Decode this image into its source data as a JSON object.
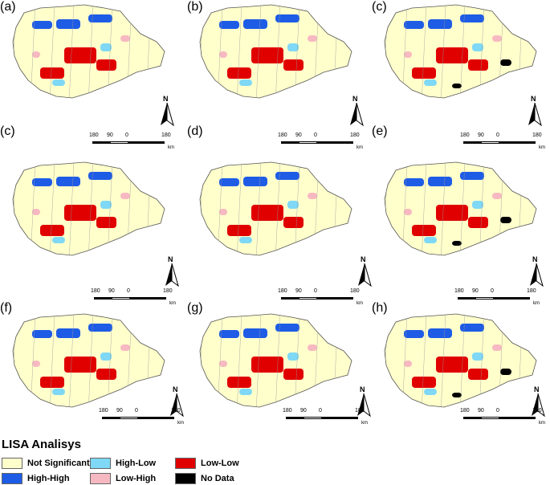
{
  "panels": [
    {
      "label": "(a)",
      "classes": [
        "high-high",
        "low-low",
        "high-low",
        "low-high"
      ]
    },
    {
      "label": "(b)",
      "classes": [
        "high-high",
        "low-low",
        "high-low",
        "low-high"
      ]
    },
    {
      "label": "(c)",
      "classes": [
        "high-high",
        "low-low",
        "high-low",
        "low-high",
        "no-data"
      ]
    },
    {
      "label": "(c)",
      "classes": [
        "high-high",
        "low-low",
        "high-low",
        "low-high"
      ]
    },
    {
      "label": "(d)",
      "classes": [
        "high-high",
        "low-low",
        "high-low",
        "low-high"
      ]
    },
    {
      "label": "(e)",
      "classes": [
        "high-high",
        "low-low",
        "high-low",
        "low-high",
        "no-data"
      ]
    },
    {
      "label": "(f)",
      "classes": [
        "high-high",
        "low-low",
        "high-low",
        "low-high"
      ]
    },
    {
      "label": "(g)",
      "classes": [
        "high-high",
        "low-low",
        "high-low",
        "low-high"
      ]
    },
    {
      "label": "(h)",
      "classes": [
        "high-high",
        "low-low",
        "high-low",
        "low-high",
        "no-data"
      ]
    }
  ],
  "scale_bar": {
    "ticks": [
      "180",
      "90",
      "0",
      "180"
    ],
    "unit": "km"
  },
  "north_arrow": {
    "letter": "N",
    "icon": "north-arrow-icon"
  },
  "legend": {
    "title": "LISA Analisys",
    "items": [
      {
        "key": "not-significant",
        "label": "Not Significant",
        "color": "#ffffcc"
      },
      {
        "key": "high-low",
        "label": "High-Low",
        "color": "#7fd8f5"
      },
      {
        "key": "low-low",
        "label": "Low-Low",
        "color": "#e00000"
      },
      {
        "key": "high-high",
        "label": "High-High",
        "color": "#1e5ce6"
      },
      {
        "key": "low-high",
        "label": "Low-High",
        "color": "#f7b9c1"
      },
      {
        "key": "no-data",
        "label": "No Data",
        "color": "#000000"
      }
    ]
  }
}
